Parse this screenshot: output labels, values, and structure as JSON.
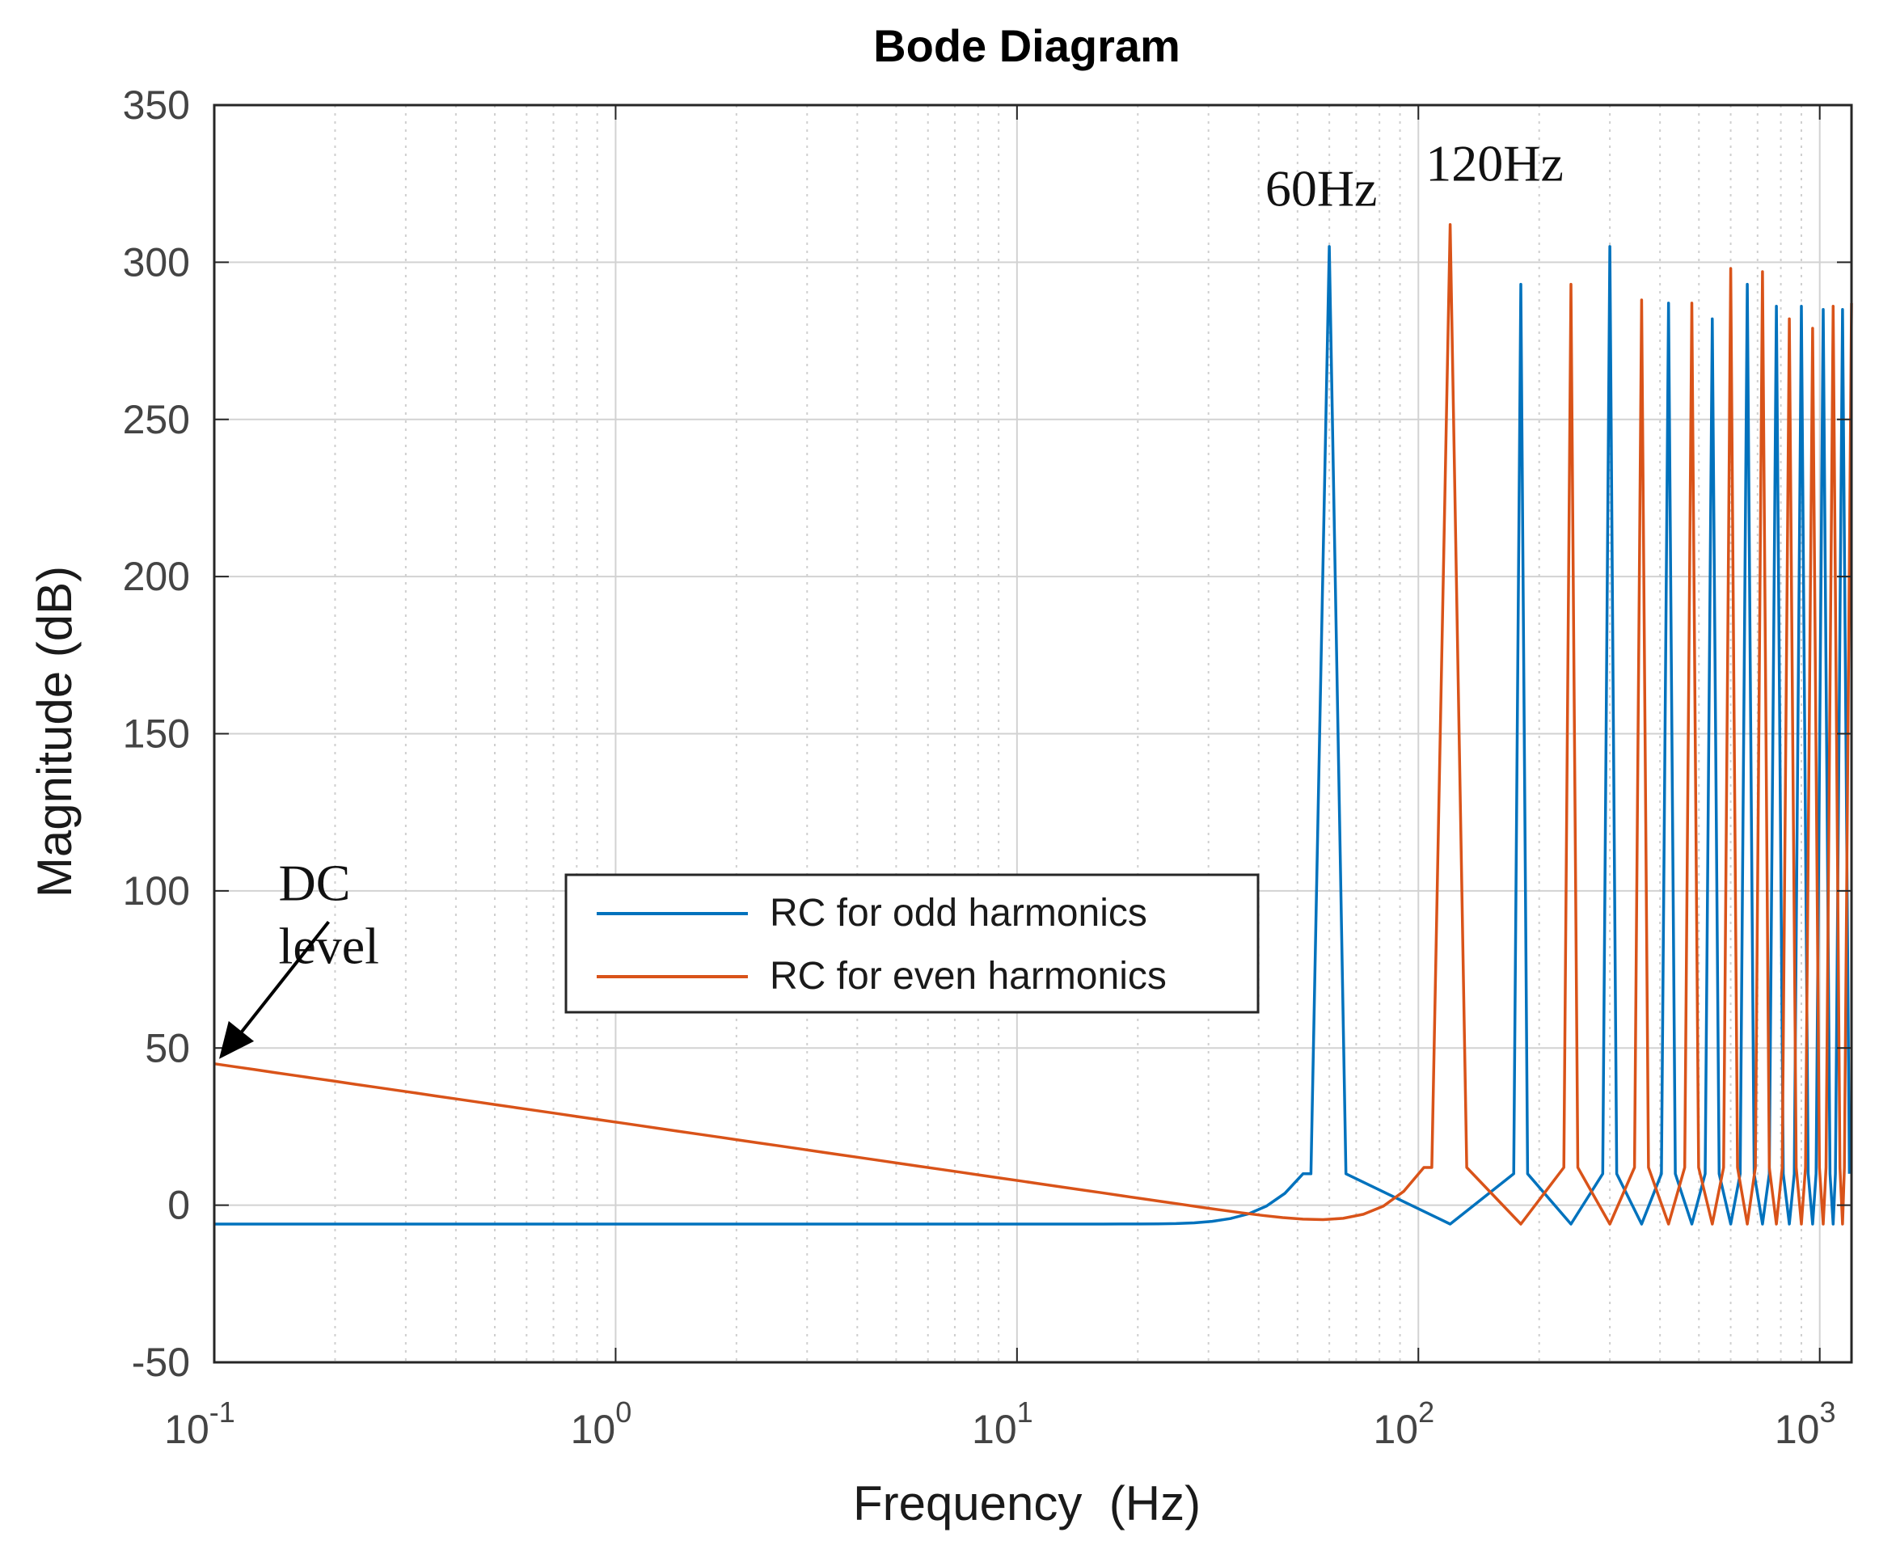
{
  "chart_data": {
    "type": "line",
    "title": "Bode Diagram",
    "xlabel": "Frequency  (Hz)",
    "ylabel": "Magnitude (dB)",
    "xscale": "log",
    "xlim": [
      0.1,
      1200
    ],
    "ylim": [
      -50,
      350
    ],
    "grid": true,
    "minor_grid": true,
    "xticks": [
      {
        "value": 0.1,
        "base": "10",
        "exp": "-1"
      },
      {
        "value": 1,
        "base": "10",
        "exp": "0"
      },
      {
        "value": 10,
        "base": "10",
        "exp": "1"
      },
      {
        "value": 100,
        "base": "10",
        "exp": "2"
      },
      {
        "value": 1000,
        "base": "10",
        "exp": "3"
      }
    ],
    "yticks": [
      -50,
      0,
      50,
      100,
      150,
      200,
      250,
      300,
      350
    ],
    "series": [
      {
        "name": "RC for odd harmonics",
        "color": "#0072BD",
        "baseline_db": -6,
        "near_peak_db": 10,
        "peaks": [
          {
            "f": 60,
            "db": 305
          },
          {
            "f": 180,
            "db": 293
          },
          {
            "f": 300,
            "db": 305
          },
          {
            "f": 420,
            "db": 287
          },
          {
            "f": 540,
            "db": 282
          },
          {
            "f": 660,
            "db": 293
          },
          {
            "f": 780,
            "db": 286
          },
          {
            "f": 900,
            "db": 286
          },
          {
            "f": 1020,
            "db": 285
          },
          {
            "f": 1140,
            "db": 285
          }
        ]
      },
      {
        "name": "RC for even harmonics",
        "color": "#D95319",
        "baseline_db": -6,
        "near_peak_db": 12,
        "dc_slope": {
          "f_start": 0.1,
          "db_start": 45,
          "f_end": 30,
          "db_end": -1
        },
        "peaks": [
          {
            "f": 120,
            "db": 312
          },
          {
            "f": 240,
            "db": 293
          },
          {
            "f": 360,
            "db": 288
          },
          {
            "f": 480,
            "db": 287
          },
          {
            "f": 600,
            "db": 298
          },
          {
            "f": 720,
            "db": 297
          },
          {
            "f": 840,
            "db": 282
          },
          {
            "f": 960,
            "db": 279
          },
          {
            "f": 1080,
            "db": 286
          },
          {
            "f": 1200,
            "db": 287
          }
        ]
      }
    ],
    "annotations": [
      {
        "text": "60Hz",
        "f": 60,
        "db": 318
      },
      {
        "text": "120Hz",
        "f": 120,
        "db": 326
      },
      {
        "text": "DC",
        "f": 0.25,
        "db": 97
      },
      {
        "text": "level",
        "f": 0.25,
        "db": 77
      }
    ],
    "arrow": {
      "from_f": 0.2,
      "from_db": 85,
      "to_f": 0.1,
      "to_db": 46
    },
    "legend": {
      "position": "center-left"
    }
  }
}
